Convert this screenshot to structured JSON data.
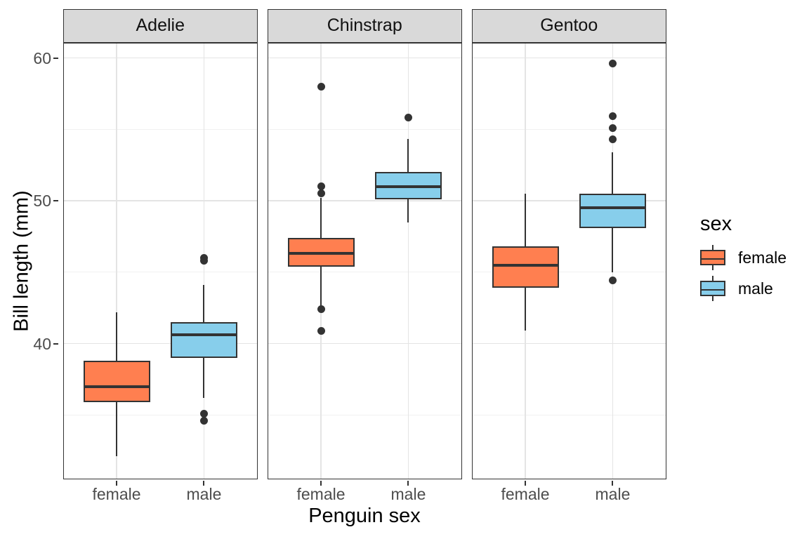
{
  "chart_data": {
    "type": "boxplot",
    "title": "",
    "xlabel": "Penguin sex",
    "ylabel": "Bill length (mm)",
    "facet_variable": "species",
    "facets": [
      "Adelie",
      "Chinstrap",
      "Gentoo"
    ],
    "categories": [
      "female",
      "male"
    ],
    "y_major_ticks": [
      60,
      50,
      40
    ],
    "y_minor_ticks": [
      55,
      45,
      35
    ],
    "ylim": [
      30.5,
      61.1
    ],
    "grid": true,
    "legend": {
      "title": "sex",
      "position": "right",
      "entries": [
        "female",
        "male"
      ]
    },
    "fill_colors": {
      "female": "#FF7F50",
      "male": "#87CEEB"
    },
    "stroke_color": "#333333",
    "series": [
      {
        "facet": "Adelie",
        "sex": "female",
        "whisker_low": 32.1,
        "q1": 35.9,
        "median": 37.0,
        "q3": 38.8,
        "whisker_high": 42.2,
        "outliers": []
      },
      {
        "facet": "Adelie",
        "sex": "male",
        "whisker_low": 36.2,
        "q1": 39.0,
        "median": 40.6,
        "q3": 41.5,
        "whisker_high": 44.1,
        "outliers": [
          46.0,
          45.8,
          35.1,
          34.6
        ]
      },
      {
        "facet": "Chinstrap",
        "sex": "female",
        "whisker_low": 42.6,
        "q1": 45.4,
        "median": 46.3,
        "q3": 47.4,
        "whisker_high": 50.2,
        "outliers": [
          58.0,
          51.0,
          50.5,
          42.4,
          40.9
        ]
      },
      {
        "facet": "Chinstrap",
        "sex": "male",
        "whisker_low": 48.5,
        "q1": 50.1,
        "median": 51.0,
        "q3": 52.0,
        "whisker_high": 54.3,
        "outliers": [
          55.8
        ]
      },
      {
        "facet": "Gentoo",
        "sex": "female",
        "whisker_low": 40.9,
        "q1": 43.9,
        "median": 45.5,
        "q3": 46.8,
        "whisker_high": 50.5,
        "outliers": []
      },
      {
        "facet": "Gentoo",
        "sex": "male",
        "whisker_low": 45.0,
        "q1": 48.1,
        "median": 49.5,
        "q3": 50.5,
        "whisker_high": 53.4,
        "outliers": [
          59.6,
          55.9,
          55.1,
          54.3,
          44.4
        ]
      }
    ]
  },
  "colors": {
    "strip_fill": "#D9D9D9",
    "strip_border": "#333333",
    "panel_border": "#333333",
    "panel_background": "#FFFFFF",
    "grid_major": "#E4E4E4",
    "grid_minor": "#F1F1F1",
    "tick_mark": "#333333",
    "tick_label": "#4D4D4D",
    "outlier": "#333333"
  }
}
